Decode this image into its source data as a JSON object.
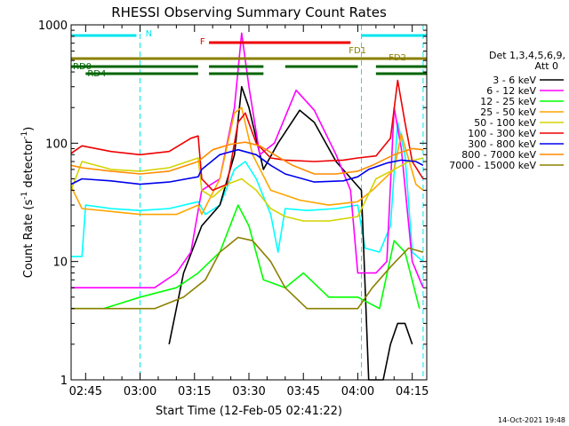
{
  "chart_data": {
    "type": "line",
    "title": "RHESSI Observing Summary Count Rates",
    "xlabel": "Start Time (12-Feb-05 02:41:22)",
    "ylabel": "Count Rate (s",
    "ylabel_sup": "-1",
    "ylabel_tail": " detector",
    "ylabel_sup2": "-1",
    "ylabel_end": ")",
    "y_scale": "log",
    "ylim": [
      1,
      1000
    ],
    "xlim": [
      "02:41",
      "04:19"
    ],
    "x_ticks": [
      "02:45",
      "03:00",
      "03:15",
      "03:30",
      "03:45",
      "04:00",
      "04:15"
    ],
    "y_ticks": [
      "1",
      "10",
      "100",
      "1000"
    ],
    "legend_header": [
      "Det 1,3,4,5,6,9,",
      "Att 0"
    ],
    "legend_position": "right",
    "timestamp": "14-Oct-2021 19:48",
    "flags": [
      {
        "label": "N",
        "color": "#00e5ee",
        "segments": [
          [
            "02:41",
            "02:59"
          ],
          [
            "04:01",
            "04:19"
          ]
        ]
      },
      {
        "label": "F",
        "color": "#ee0000",
        "segments": [
          [
            "03:19",
            "03:58"
          ]
        ]
      },
      {
        "label": "FD1",
        "color": "#8b8000",
        "segments": [
          [
            "02:41",
            "04:19"
          ]
        ]
      },
      {
        "label": "FD2",
        "color": "#8b8000",
        "segments": []
      },
      {
        "label": "RD0",
        "color": "#006400",
        "segments": [
          [
            "02:41",
            "03:16"
          ],
          [
            "03:19",
            "03:34"
          ],
          [
            "03:40",
            "04:00"
          ],
          [
            "04:05",
            "04:19"
          ]
        ]
      },
      {
        "label": "RD4",
        "color": "#006400",
        "segments": [
          [
            "02:45",
            "03:16"
          ],
          [
            "03:19",
            "03:34"
          ],
          [
            "04:05",
            "04:19"
          ]
        ]
      }
    ],
    "dashed_lines": [
      "03:00",
      "04:01",
      "04:18"
    ],
    "series": [
      {
        "name": "3 - 6 keV",
        "color": "#000000",
        "points": [
          [
            "03:08",
            2
          ],
          [
            "03:12",
            8
          ],
          [
            "03:17",
            20
          ],
          [
            "03:22",
            30
          ],
          [
            "03:26",
            80
          ],
          [
            "03:28",
            300
          ],
          [
            "03:30",
            200
          ],
          [
            "03:34",
            60
          ],
          [
            "03:38",
            100
          ],
          [
            "03:44",
            190
          ],
          [
            "03:48",
            150
          ],
          [
            "03:54",
            70
          ],
          [
            "04:01",
            40
          ],
          [
            "04:03",
            1
          ],
          [
            "04:07",
            1
          ],
          [
            "04:09",
            2
          ],
          [
            "04:11",
            3
          ],
          [
            "04:13",
            3
          ],
          [
            "04:15",
            2
          ]
        ]
      },
      {
        "name": "6 - 12 keV",
        "color": "#ff00ff",
        "points": [
          [
            "02:41",
            6
          ],
          [
            "02:44",
            6
          ],
          [
            "02:50",
            6
          ],
          [
            "02:56",
            6
          ],
          [
            "03:04",
            6
          ],
          [
            "03:10",
            8
          ],
          [
            "03:14",
            12
          ],
          [
            "03:17",
            40
          ],
          [
            "03:22",
            50
          ],
          [
            "03:26",
            200
          ],
          [
            "03:28",
            850
          ],
          [
            "03:30",
            300
          ],
          [
            "03:33",
            80
          ],
          [
            "03:37",
            100
          ],
          [
            "03:43",
            280
          ],
          [
            "03:48",
            190
          ],
          [
            "03:54",
            80
          ],
          [
            "03:58",
            40
          ],
          [
            "04:00",
            8
          ],
          [
            "04:05",
            8
          ],
          [
            "04:08",
            10
          ],
          [
            "04:10",
            200
          ],
          [
            "04:12",
            90
          ],
          [
            "04:15",
            10
          ],
          [
            "04:18",
            6
          ]
        ]
      },
      {
        "name": "12 - 25 keV",
        "color": "#00ff00",
        "points": [
          [
            "02:41",
            4
          ],
          [
            "02:50",
            4
          ],
          [
            "03:00",
            5
          ],
          [
            "03:10",
            6
          ],
          [
            "03:16",
            8
          ],
          [
            "03:22",
            12
          ],
          [
            "03:27",
            30
          ],
          [
            "03:30",
            20
          ],
          [
            "03:34",
            7
          ],
          [
            "03:40",
            6
          ],
          [
            "03:45",
            8
          ],
          [
            "03:52",
            5
          ],
          [
            "04:00",
            5
          ],
          [
            "04:06",
            4
          ],
          [
            "04:10",
            15
          ],
          [
            "04:13",
            12
          ],
          [
            "04:17",
            4
          ]
        ]
      },
      {
        "name": "25 - 50 keV",
        "color": "#ffa500",
        "points": [
          [
            "02:41",
            43
          ],
          [
            "02:44",
            28
          ],
          [
            "03:00",
            25
          ],
          [
            "03:10",
            25
          ],
          [
            "03:16",
            30
          ],
          [
            "03:17",
            25
          ],
          [
            "03:22",
            50
          ],
          [
            "03:26",
            180
          ],
          [
            "03:28",
            200
          ],
          [
            "03:31",
            80
          ],
          [
            "03:36",
            40
          ],
          [
            "03:44",
            33
          ],
          [
            "03:52",
            30
          ],
          [
            "04:00",
            32
          ],
          [
            "04:04",
            40
          ],
          [
            "04:10",
            60
          ],
          [
            "04:12",
            120
          ],
          [
            "04:16",
            45
          ],
          [
            "04:18",
            40
          ]
        ]
      },
      {
        "name": "50 - 100 keV",
        "color": "#d4d400",
        "points": [
          [
            "02:41",
            40
          ],
          [
            "02:44",
            70
          ],
          [
            "02:52",
            60
          ],
          [
            "03:00",
            58
          ],
          [
            "03:08",
            62
          ],
          [
            "03:16",
            75
          ],
          [
            "03:17",
            40
          ],
          [
            "03:20",
            35
          ],
          [
            "03:24",
            45
          ],
          [
            "03:28",
            50
          ],
          [
            "03:32",
            40
          ],
          [
            "03:36",
            28
          ],
          [
            "03:40",
            24
          ],
          [
            "03:45",
            22
          ],
          [
            "03:52",
            22
          ],
          [
            "04:00",
            24
          ],
          [
            "04:05",
            50
          ],
          [
            "04:10",
            60
          ],
          [
            "04:14",
            70
          ],
          [
            "04:18",
            75
          ]
        ]
      },
      {
        "name": "100 - 300 keV",
        "color": "#ee0000",
        "points": [
          [
            "02:41",
            82
          ],
          [
            "02:44",
            95
          ],
          [
            "02:52",
            85
          ],
          [
            "03:00",
            80
          ],
          [
            "03:08",
            85
          ],
          [
            "03:14",
            110
          ],
          [
            "03:16",
            115
          ],
          [
            "03:17",
            50
          ],
          [
            "03:20",
            40
          ],
          [
            "03:24",
            45
          ],
          [
            "03:27",
            150
          ],
          [
            "03:29",
            180
          ],
          [
            "03:32",
            100
          ],
          [
            "03:36",
            75
          ],
          [
            "03:40",
            72
          ],
          [
            "03:48",
            70
          ],
          [
            "03:56",
            72
          ],
          [
            "04:00",
            75
          ],
          [
            "04:05",
            78
          ],
          [
            "04:09",
            110
          ],
          [
            "04:11",
            340
          ],
          [
            "04:13",
            150
          ],
          [
            "04:15",
            70
          ],
          [
            "04:18",
            50
          ]
        ]
      },
      {
        "name": "300 - 800 keV",
        "color": "#0000ee",
        "points": [
          [
            "02:41",
            45
          ],
          [
            "02:44",
            50
          ],
          [
            "02:52",
            48
          ],
          [
            "03:00",
            45
          ],
          [
            "03:08",
            47
          ],
          [
            "03:16",
            52
          ],
          [
            "03:17",
            60
          ],
          [
            "03:22",
            80
          ],
          [
            "03:27",
            88
          ],
          [
            "03:32",
            80
          ],
          [
            "03:36",
            65
          ],
          [
            "03:40",
            55
          ],
          [
            "03:48",
            47
          ],
          [
            "03:56",
            48
          ],
          [
            "04:00",
            52
          ],
          [
            "04:03",
            60
          ],
          [
            "04:08",
            68
          ],
          [
            "04:12",
            72
          ],
          [
            "04:16",
            70
          ],
          [
            "04:18",
            65
          ]
        ]
      },
      {
        "name": "800 - 7000 keV",
        "color": "#ff8c00",
        "points": [
          [
            "02:41",
            65
          ],
          [
            "02:44",
            62
          ],
          [
            "02:52",
            58
          ],
          [
            "03:00",
            55
          ],
          [
            "03:08",
            58
          ],
          [
            "03:16",
            70
          ],
          [
            "03:20",
            88
          ],
          [
            "03:25",
            98
          ],
          [
            "03:29",
            102
          ],
          [
            "03:33",
            95
          ],
          [
            "03:37",
            80
          ],
          [
            "03:42",
            65
          ],
          [
            "03:48",
            55
          ],
          [
            "03:54",
            55
          ],
          [
            "04:00",
            58
          ],
          [
            "04:04",
            65
          ],
          [
            "04:10",
            80
          ],
          [
            "04:15",
            90
          ],
          [
            "04:18",
            88
          ]
        ]
      },
      {
        "name": "7000 - 15000 keV",
        "color": "#8b8000",
        "points": [
          [
            "02:41",
            4
          ],
          [
            "02:48",
            4
          ],
          [
            "02:56",
            4
          ],
          [
            "03:04",
            4
          ],
          [
            "03:12",
            5
          ],
          [
            "03:18",
            7
          ],
          [
            "03:22",
            12
          ],
          [
            "03:27",
            16
          ],
          [
            "03:31",
            15
          ],
          [
            "03:36",
            10
          ],
          [
            "03:40",
            6
          ],
          [
            "03:46",
            4
          ],
          [
            "03:54",
            4
          ],
          [
            "04:00",
            4
          ],
          [
            "04:04",
            6
          ],
          [
            "04:09",
            9
          ],
          [
            "04:14",
            13
          ],
          [
            "04:18",
            12
          ]
        ]
      }
    ],
    "cyan_trace": {
      "color": "#00ffff",
      "points": [
        [
          "02:41",
          11
        ],
        [
          "02:44",
          11
        ],
        [
          "02:45",
          30
        ],
        [
          "02:52",
          28
        ],
        [
          "03:00",
          27
        ],
        [
          "03:08",
          28
        ],
        [
          "03:16",
          32
        ],
        [
          "03:18",
          25
        ],
        [
          "03:22",
          30
        ],
        [
          "03:26",
          60
        ],
        [
          "03:29",
          70
        ],
        [
          "03:32",
          50
        ],
        [
          "03:36",
          25
        ],
        [
          "03:38",
          12
        ],
        [
          "03:40",
          28
        ],
        [
          "03:46",
          27
        ],
        [
          "03:54",
          28
        ],
        [
          "04:00",
          30
        ],
        [
          "04:02",
          13
        ],
        [
          "04:06",
          12
        ],
        [
          "04:09",
          20
        ],
        [
          "04:11",
          150
        ],
        [
          "04:13",
          80
        ],
        [
          "04:15",
          12
        ],
        [
          "04:18",
          10
        ]
      ]
    }
  }
}
